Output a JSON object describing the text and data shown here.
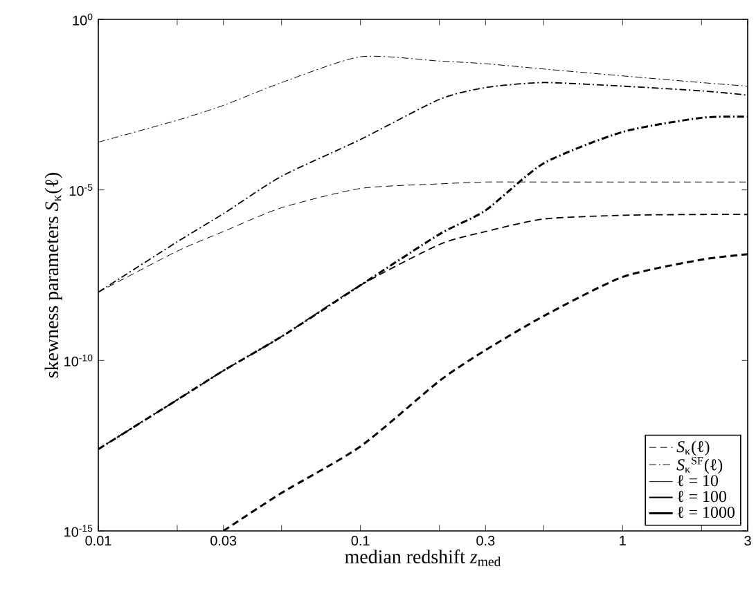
{
  "chart_data": {
    "type": "line",
    "xlabel": "median redshift *z*$_{med}$",
    "ylabel": "skewness parameters *S*$_{κ}$(ℓ)",
    "log": "xy",
    "grid": false,
    "legend": "bottom right",
    "x": [
      0.01,
      0.02,
      0.03,
      0.05,
      0.1,
      0.2,
      0.3,
      0.5,
      1,
      2,
      3
    ],
    "xlim": [
      0.01,
      3
    ],
    "ylim": [
      1e-15,
      1
    ],
    "xticks": [
      0.01,
      {
        "value": 0.02,
        "label": null
      },
      0.03,
      {
        "value": 0.05,
        "label": null
      },
      0.1,
      {
        "value": 0.2,
        "label": null
      },
      0.3,
      {
        "value": 0.5,
        "label": null
      },
      1,
      {
        "value": 2,
        "label": null
      },
      3
    ],
    "yticks": [
      {
        "value": 1e-15,
        "label": "10$^{-15}$"
      },
      {
        "value": 1e-10,
        "label": "10$^{-10}$"
      },
      {
        "value": 1e-05,
        "label": "10$^{-5}$"
      },
      {
        "value": 1,
        "label": "10$^{0}$"
      }
    ],
    "series": [
      {
        "color": "#000000",
        "line_style": "dashed",
        "values": [
          1e-08,
          1.6e-07,
          6e-07,
          3e-06,
          1.1e-05,
          1.5e-05,
          1.7e-05,
          1.7e-05,
          1.7e-05,
          1.7e-05,
          1.7e-05
        ]
      },
      {
        "color": "#000000",
        "line_style": "dashed",
        "values": [
          2.5e-13,
          7e-12,
          5e-11,
          5e-10,
          1.6e-08,
          2.5e-07,
          6e-07,
          1.4e-06,
          1.8e-06,
          1.9e-06,
          1.9e-06
        ]
      },
      {
        "color": "#000000",
        "line_style": "dashed",
        "values": [
          null,
          null,
          1e-15,
          1.3e-14,
          3e-13,
          2.5e-11,
          2e-10,
          2e-09,
          2.8e-08,
          9e-08,
          1.3e-07
        ]
      },
      {
        "color": "#000000",
        "line_style": "dashdot",
        "values": [
          0.00025,
          0.0011,
          0.003,
          0.014,
          0.08,
          0.06,
          0.05,
          0.035,
          0.022,
          0.014,
          0.011
        ]
      },
      {
        "color": "#000000",
        "line_style": "dashdot",
        "values": [
          1e-08,
          3e-07,
          2e-06,
          2.5e-05,
          0.0003,
          0.0045,
          0.01,
          0.014,
          0.011,
          0.008,
          0.006
        ]
      },
      {
        "color": "#000000",
        "line_style": "dashdot",
        "values": [
          2.5e-13,
          7e-12,
          5e-11,
          5e-10,
          1.6e-08,
          5e-07,
          2.5e-06,
          6e-05,
          0.0005,
          0.0013,
          0.0014
        ]
      },
      {
        "name": "*S*$_{κ}$(ℓ)",
        "color": "#000000",
        "line_style": "dashed",
        "values": [
          null,
          null,
          null,
          null,
          null,
          null,
          null,
          null,
          null,
          null,
          null
        ]
      },
      {
        "name": "*S*$_{κ}$$^{SF}$(ℓ)",
        "color": "#000000",
        "line_style": "dashdot",
        "values": [
          null,
          null,
          null,
          null,
          null,
          null,
          null,
          null,
          null,
          null,
          null
        ]
      },
      {
        "name": "ℓ = 10",
        "color": "#000000",
        "line_style": "solid",
        "values": [
          null,
          null,
          null,
          null,
          null,
          null,
          null,
          null,
          null,
          null,
          null
        ]
      },
      {
        "name": "ℓ = 100",
        "color": "#000000",
        "line_style": "solid",
        "values": [
          null,
          null,
          null,
          null,
          null,
          null,
          null,
          null,
          null,
          null,
          null
        ]
      },
      {
        "name": "ℓ = 1000",
        "color": "#000000",
        "line_style": "solid",
        "values": [
          null,
          null,
          null,
          null,
          null,
          null,
          null,
          null,
          null,
          null,
          null
        ]
      }
    ]
  }
}
